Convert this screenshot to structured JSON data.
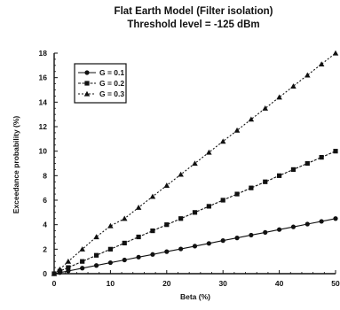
{
  "chart_data": {
    "type": "line",
    "title": "Flat Earth Model (Filter isolation)",
    "subtitle": "Threshold level = -125 dBm",
    "xlabel": "Beta (%)",
    "ylabel": "Exceedance probability (%)",
    "xlim": [
      0,
      50
    ],
    "ylim": [
      0,
      18
    ],
    "xticks": [
      0,
      10,
      20,
      30,
      40,
      50
    ],
    "yticks": [
      0,
      2,
      4,
      6,
      8,
      10,
      12,
      14,
      16,
      18
    ],
    "grid": false,
    "legend_position": "top-left",
    "series": [
      {
        "name": "G = 0.1",
        "marker": "circle",
        "color": "#111111",
        "x": [
          0,
          1,
          2.5,
          5,
          7.5,
          10,
          12.5,
          15,
          17.5,
          20,
          22.5,
          25,
          27.5,
          30,
          32.5,
          35,
          37.5,
          40,
          42.5,
          45,
          47.5,
          50
        ],
        "y": [
          0,
          0.09,
          0.22,
          0.45,
          0.67,
          0.9,
          1.12,
          1.35,
          1.57,
          1.8,
          2.02,
          2.25,
          2.47,
          2.7,
          2.92,
          3.15,
          3.37,
          3.6,
          3.82,
          4.05,
          4.27,
          4.5
        ]
      },
      {
        "name": "G = 0.2",
        "marker": "square",
        "color": "#111111",
        "x": [
          0,
          1,
          2.5,
          5,
          7.5,
          10,
          12.5,
          15,
          17.5,
          20,
          22.5,
          25,
          27.5,
          30,
          32.5,
          35,
          37.5,
          40,
          42.5,
          45,
          47.5,
          50
        ],
        "y": [
          0,
          0.2,
          0.5,
          1.0,
          1.5,
          2.0,
          2.5,
          3.0,
          3.5,
          4.0,
          4.5,
          5.0,
          5.5,
          6.0,
          6.5,
          7.0,
          7.5,
          8.0,
          8.5,
          9.0,
          9.5,
          10.0
        ]
      },
      {
        "name": "G = 0.3",
        "marker": "triangle",
        "color": "#111111",
        "x": [
          0,
          1,
          2.5,
          5,
          7.5,
          10,
          12.5,
          15,
          17.5,
          20,
          22.5,
          25,
          27.5,
          30,
          32.5,
          35,
          37.5,
          40,
          42.5,
          45,
          47.5,
          50
        ],
        "y": [
          0,
          0.35,
          1.0,
          2.0,
          3.0,
          3.9,
          4.5,
          5.4,
          6.3,
          7.2,
          8.1,
          9.0,
          9.9,
          10.8,
          11.7,
          12.6,
          13.5,
          14.4,
          15.3,
          16.2,
          17.1,
          18.0
        ]
      }
    ]
  }
}
